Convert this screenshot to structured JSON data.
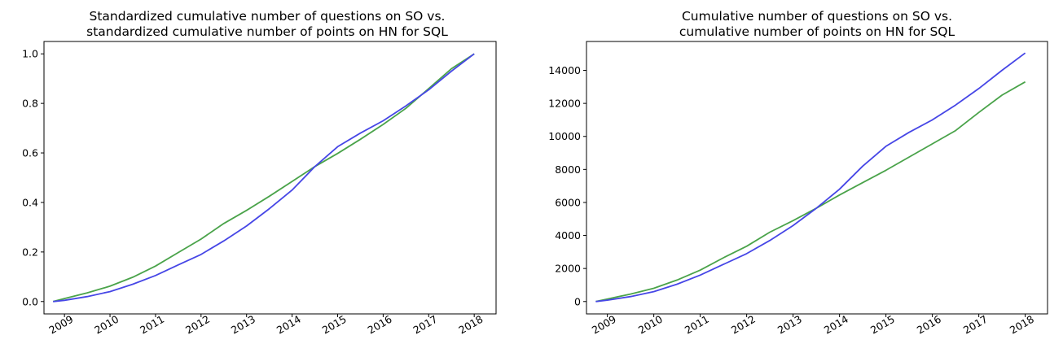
{
  "colors": {
    "green": "#4aa34a",
    "blue": "#4646e6",
    "axis": "#000000",
    "background": "#ffffff"
  },
  "chart_data": [
    {
      "type": "line",
      "title": [
        "Standardized cumulative number of questions on SO vs.",
        "standardized cumulative number of points on HN for SQL"
      ],
      "xlabel": "",
      "ylabel": "",
      "xlim": [
        2008.55,
        2018.48
      ],
      "ylim": [
        -0.05,
        1.05
      ],
      "xticks": [
        "2009",
        "2010",
        "2011",
        "2012",
        "2013",
        "2014",
        "2015",
        "2016",
        "2017",
        "2018"
      ],
      "yticks": [
        "0.0",
        "0.2",
        "0.4",
        "0.6",
        "0.8",
        "1.0"
      ],
      "ytick_values": [
        0.0,
        0.2,
        0.4,
        0.6,
        0.8,
        1.0
      ],
      "grid": false,
      "legend": "none",
      "series": [
        {
          "color": "green",
          "x": [
            2008.75,
            2009.0,
            2009.5,
            2010.0,
            2010.5,
            2011.0,
            2011.5,
            2012.0,
            2012.5,
            2013.0,
            2013.5,
            2014.0,
            2014.5,
            2015.0,
            2015.5,
            2016.0,
            2016.5,
            2017.0,
            2017.5,
            2018.0
          ],
          "y": [
            0.0,
            0.012,
            0.035,
            0.062,
            0.098,
            0.143,
            0.198,
            0.252,
            0.315,
            0.368,
            0.425,
            0.485,
            0.545,
            0.598,
            0.655,
            0.715,
            0.78,
            0.86,
            0.94,
            1.0
          ]
        },
        {
          "color": "blue",
          "x": [
            2008.75,
            2009.0,
            2009.5,
            2010.0,
            2010.5,
            2011.0,
            2011.5,
            2012.0,
            2012.5,
            2013.0,
            2013.5,
            2014.0,
            2014.5,
            2015.0,
            2015.5,
            2016.0,
            2016.5,
            2017.0,
            2017.5,
            2018.0
          ],
          "y": [
            0.0,
            0.005,
            0.02,
            0.04,
            0.07,
            0.105,
            0.148,
            0.19,
            0.245,
            0.305,
            0.375,
            0.45,
            0.545,
            0.625,
            0.68,
            0.73,
            0.79,
            0.855,
            0.93,
            1.0
          ]
        }
      ]
    },
    {
      "type": "line",
      "title": [
        "Cumulative number of questions on SO vs.",
        "cumulative number of points on HN for SQL"
      ],
      "xlabel": "",
      "ylabel": "",
      "xlim": [
        2008.55,
        2018.48
      ],
      "ylim": [
        -750,
        15750
      ],
      "xticks": [
        "2009",
        "2010",
        "2011",
        "2012",
        "2013",
        "2014",
        "2015",
        "2016",
        "2017",
        "2018"
      ],
      "yticks": [
        "0",
        "2000",
        "4000",
        "6000",
        "8000",
        "10000",
        "12000",
        "14000"
      ],
      "ytick_values": [
        0,
        2000,
        4000,
        6000,
        8000,
        10000,
        12000,
        14000
      ],
      "grid": false,
      "legend": "none",
      "series": [
        {
          "color": "green",
          "x": [
            2008.75,
            2009.0,
            2009.5,
            2010.0,
            2010.5,
            2011.0,
            2011.5,
            2012.0,
            2012.5,
            2013.0,
            2013.5,
            2014.0,
            2014.5,
            2015.0,
            2015.5,
            2016.0,
            2016.5,
            2017.0,
            2017.5,
            2018.0
          ],
          "y": [
            0,
            150,
            450,
            800,
            1300,
            1900,
            2650,
            3350,
            4200,
            4900,
            5650,
            6450,
            7200,
            7950,
            8750,
            9550,
            10350,
            11450,
            12500,
            13300
          ]
        },
        {
          "color": "blue",
          "x": [
            2008.75,
            2009.0,
            2009.5,
            2010.0,
            2010.5,
            2011.0,
            2011.5,
            2012.0,
            2012.5,
            2013.0,
            2013.5,
            2014.0,
            2014.5,
            2015.0,
            2015.5,
            2016.0,
            2016.5,
            2017.0,
            2017.5,
            2018.0
          ],
          "y": [
            0,
            80,
            300,
            600,
            1050,
            1600,
            2250,
            2900,
            3700,
            4600,
            5650,
            6800,
            8200,
            9400,
            10250,
            11000,
            11900,
            12900,
            14000,
            15050
          ]
        }
      ]
    }
  ]
}
